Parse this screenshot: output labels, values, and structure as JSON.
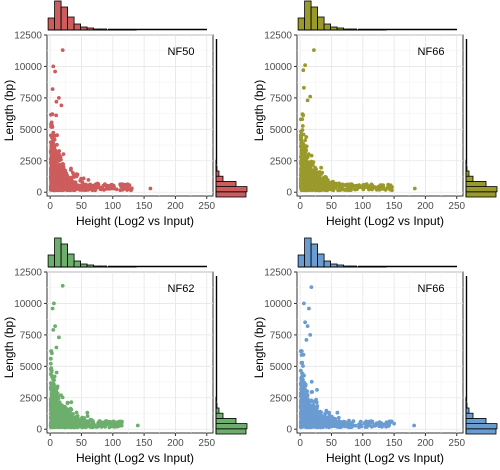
{
  "chart_data": [
    {
      "type": "scatter",
      "label": "NF50",
      "color": "#CD5C5C",
      "xlabel": "Height (Log2 vs Input)",
      "ylabel": "Length (bp)",
      "xlim": [
        -5,
        260
      ],
      "ylim": [
        -300,
        12500
      ],
      "xticks": [
        0,
        50,
        100,
        150,
        200,
        250
      ],
      "yticks": [
        0,
        2500,
        5000,
        7500,
        10000,
        12500
      ],
      "xmax": 162,
      "grid": true,
      "outliers": [
        [
          20,
          11300
        ],
        [
          5,
          10000
        ],
        [
          8,
          9600
        ],
        [
          4,
          8200
        ],
        [
          14,
          7500
        ],
        [
          10,
          7200
        ],
        [
          18,
          6900
        ],
        [
          160,
          300
        ],
        [
          130,
          250
        ],
        [
          120,
          350
        ]
      ]
    },
    {
      "type": "scatter",
      "label": "NF66",
      "color": "#9A9A2C",
      "xlabel": "Height (Log2 vs Input)",
      "ylabel": "Length (bp)",
      "xlim": [
        -5,
        260
      ],
      "ylim": [
        -300,
        12500
      ],
      "xticks": [
        0,
        50,
        100,
        150,
        200,
        250
      ],
      "yticks": [
        0,
        2500,
        5000,
        7500,
        10000,
        12500
      ],
      "xmax": 183,
      "grid": true,
      "outliers": [
        [
          22,
          11300
        ],
        [
          8,
          10100
        ],
        [
          5,
          9700
        ],
        [
          6,
          8300
        ],
        [
          16,
          7600
        ],
        [
          12,
          7300
        ],
        [
          183,
          300
        ],
        [
          140,
          350
        ],
        [
          125,
          450
        ]
      ]
    },
    {
      "type": "scatter",
      "label": "NF62",
      "color": "#6DAE6D",
      "xlabel": "Height (Log2 vs Input)",
      "ylabel": "Length (bp)",
      "xlim": [
        -5,
        260
      ],
      "ylim": [
        -300,
        12500
      ],
      "xticks": [
        0,
        50,
        100,
        150,
        200,
        250
      ],
      "yticks": [
        0,
        2500,
        5000,
        7500,
        10000,
        12500
      ],
      "xmax": 140,
      "grid": true,
      "outliers": [
        [
          20,
          11400
        ],
        [
          6,
          10000
        ],
        [
          4,
          9600
        ],
        [
          8,
          8200
        ],
        [
          5,
          7900
        ],
        [
          14,
          7300
        ],
        [
          10,
          6500
        ],
        [
          140,
          300
        ],
        [
          110,
          400
        ],
        [
          100,
          250
        ]
      ]
    },
    {
      "type": "scatter",
      "label": "NF66",
      "color": "#6A9BD1",
      "xlabel": "Height (Log2 vs Input)",
      "ylabel": "Length (bp)",
      "xlim": [
        -5,
        260
      ],
      "ylim": [
        -300,
        12500
      ],
      "xticks": [
        0,
        50,
        100,
        150,
        200,
        250
      ],
      "yticks": [
        0,
        2500,
        5000,
        7500,
        10000,
        12500
      ],
      "xmax": 182,
      "grid": true,
      "outliers": [
        [
          18,
          11300
        ],
        [
          6,
          10000
        ],
        [
          14,
          9600
        ],
        [
          8,
          8500
        ],
        [
          12,
          8200
        ],
        [
          16,
          7500
        ],
        [
          10,
          7100
        ],
        [
          182,
          300
        ],
        [
          150,
          450
        ],
        [
          110,
          600
        ]
      ]
    }
  ]
}
